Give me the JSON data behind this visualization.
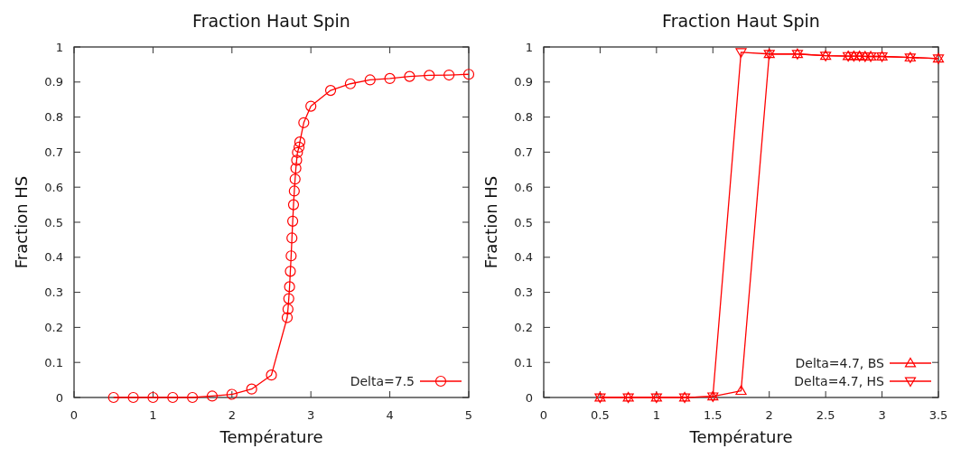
{
  "chart_data": [
    {
      "type": "line",
      "title": "Fraction Haut Spin",
      "xlabel": "Température",
      "ylabel": "Fraction HS",
      "xlim": [
        0,
        5
      ],
      "ylim": [
        0,
        1
      ],
      "xticks": [
        0,
        1,
        2,
        3,
        4,
        5
      ],
      "yticks": [
        0,
        0.1,
        0.2,
        0.3,
        0.4,
        0.5,
        0.6,
        0.7,
        0.8,
        0.9,
        1
      ],
      "grid": false,
      "legend": "bottom right",
      "line_style": "solid",
      "series": [
        {
          "name": "Delta=7.5",
          "color": "#ff0000",
          "marker": "circle",
          "x": [
            0.5,
            0.75,
            1,
            1.25,
            1.5,
            1.75,
            2,
            2.25,
            2.5,
            2.7,
            2.71,
            2.72,
            2.73,
            2.74,
            2.75,
            2.76,
            2.77,
            2.78,
            2.79,
            2.8,
            2.81,
            2.82,
            2.83,
            2.85,
            2.86,
            2.91,
            3,
            3.25,
            3.5,
            3.75,
            4,
            4.25,
            4.5,
            4.75,
            5
          ],
          "values": [
            0,
            0,
            0,
            0,
            0,
            0.004,
            0.009,
            0.024,
            0.064,
            0.228,
            0.252,
            0.282,
            0.316,
            0.36,
            0.404,
            0.455,
            0.503,
            0.55,
            0.589,
            0.623,
            0.654,
            0.677,
            0.699,
            0.714,
            0.729,
            0.784,
            0.831,
            0.876,
            0.895,
            0.906,
            0.91,
            0.916,
            0.919,
            0.92,
            0.922
          ]
        }
      ]
    },
    {
      "type": "line",
      "title": "Fraction Haut Spin",
      "xlabel": "Température",
      "ylabel": "Fraction HS",
      "xlim": [
        0,
        3.5
      ],
      "ylim": [
        0,
        1
      ],
      "xticks": [
        0,
        0.5,
        1,
        1.5,
        2,
        2.5,
        3,
        3.5
      ],
      "yticks": [
        0,
        0.1,
        0.2,
        0.3,
        0.4,
        0.5,
        0.6,
        0.7,
        0.8,
        0.9,
        1
      ],
      "grid": false,
      "legend": "bottom right",
      "line_style": "solid",
      "series": [
        {
          "name": "Delta=4.7, BS",
          "color": "#ff0000",
          "marker": "triangle",
          "x": [
            0.5,
            0.75,
            1,
            1.25,
            1.5,
            1.75,
            2,
            2.25,
            2.5,
            2.7,
            2.75,
            2.8,
            2.85,
            2.9,
            3,
            3.25,
            3.5
          ],
          "values": [
            0,
            0,
            0,
            0,
            0.003,
            0.019,
            0.98,
            0.98,
            0.975,
            0.974,
            0.974,
            0.974,
            0.973,
            0.973,
            0.973,
            0.97,
            0.967
          ]
        },
        {
          "name": "Delta=4.7, HS",
          "color": "#ff0000",
          "marker": "triangle-down",
          "x": [
            0.5,
            0.75,
            1,
            1.25,
            1.5,
            1.75,
            2,
            2.25,
            2.5,
            2.7,
            2.75,
            2.8,
            2.85,
            2.9,
            3,
            3.25,
            3.5
          ],
          "values": [
            0,
            0,
            0,
            0,
            0.003,
            0.985,
            0.98,
            0.98,
            0.975,
            0.974,
            0.974,
            0.974,
            0.973,
            0.973,
            0.973,
            0.97,
            0.967
          ]
        }
      ]
    }
  ]
}
